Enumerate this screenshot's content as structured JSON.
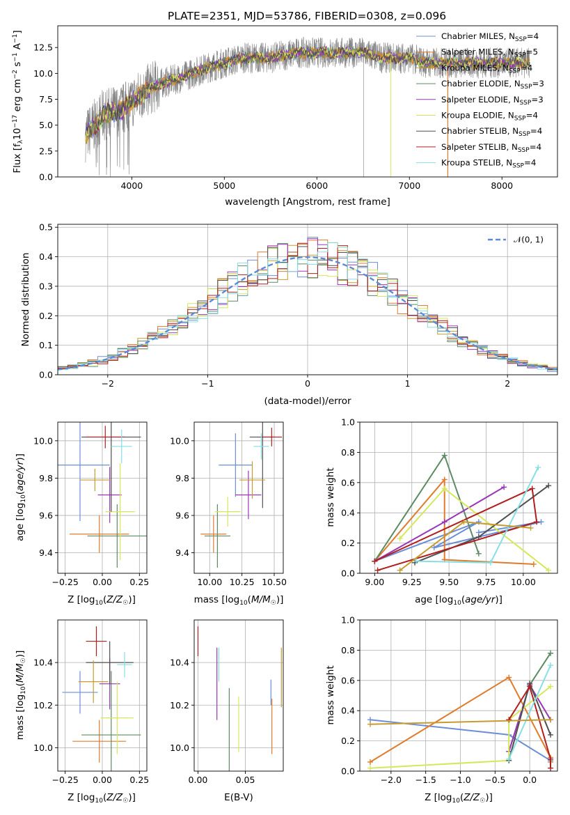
{
  "title": "PLATE=2351, MJD=53786, FIBERID=0308, z=0.096",
  "models": [
    {
      "name": "Chabrier MILES, N_SSP=4",
      "color": "#6b8fd6"
    },
    {
      "name": "Salpeter MILES, N_SSP=5",
      "color": "#e07b2b"
    },
    {
      "name": "Kroupa MILES, N_SSP=4",
      "color": "#c89b2e"
    },
    {
      "name": "Chabrier ELODIE, N_SSP=3",
      "color": "#5c8a63"
    },
    {
      "name": "Salpeter ELODIE, N_SSP=3",
      "color": "#9a35b8"
    },
    {
      "name": "Kroupa ELODIE, N_SSP=4",
      "color": "#d4e85a"
    },
    {
      "name": "Chabrier STELIB, N_SSP=4",
      "color": "#4f4f4f"
    },
    {
      "name": "Salpeter STELIB, N_SSP=4",
      "color": "#b01e1e"
    },
    {
      "name": "Kroupa STELIB, N_SSP=4",
      "color": "#86dfe3"
    }
  ],
  "panel_spectrum": {
    "xlabel": "wavelength [Angstrom, rest frame]",
    "ylabel": "Flux [f_λ 10^-17 erg cm^-2 s^-1 A^-1]",
    "xlim": [
      3200,
      8600
    ],
    "ylim": [
      0,
      14.6
    ],
    "xticks": [
      4000,
      5000,
      6000,
      7000,
      8000
    ],
    "yticks": [
      0.0,
      2.5,
      5.0,
      7.5,
      10.0,
      12.5
    ],
    "legend_labels": [
      "Chabrier MILES, N",
      "SSP",
      "=4",
      "Salpeter MILES, N",
      "SSP",
      "=5",
      "Kroupa MILES, N",
      "SSP",
      "=4",
      "Chabrier ELODIE, N",
      "SSP",
      "=3",
      "Salpeter ELODIE, N",
      "SSP",
      "=3",
      "Kroupa ELODIE, N",
      "SSP",
      "=4",
      "Chabrier STELIB, N",
      "SSP",
      "=4",
      "Salpeter STELIB, N",
      "SSP",
      "=4",
      "Kroupa STELIB, N",
      "SSP",
      "=4"
    ]
  },
  "panel_hist": {
    "xlabel": "(data-model)/error",
    "ylabel": "Normed distribution",
    "xlim": [
      -2.5,
      2.5
    ],
    "ylim": [
      0,
      0.51
    ],
    "xticks": [
      -2,
      -1,
      0,
      1,
      2
    ],
    "yticks": [
      0.0,
      0.1,
      0.2,
      0.3,
      0.4,
      0.5
    ],
    "legend": "𝒩(0, 1)"
  },
  "panel_age_Z": {
    "xlabel": "Z [log10(Z/Z☉)]",
    "ylabel": "age [log10(age/yr)]",
    "xlim": [
      -0.3,
      0.3
    ],
    "ylim": [
      9.29,
      10.1
    ],
    "xticks": [
      -0.25,
      0.0,
      0.25
    ],
    "yticks": [
      9.4,
      9.6,
      9.8,
      10.0
    ]
  },
  "panel_age_mass": {
    "xlabel": "mass [log10(M/M☉)]",
    "xlim": [
      9.88,
      10.57
    ],
    "ylim": [
      9.29,
      10.1
    ],
    "xticks": [
      10.0,
      10.25,
      10.5
    ],
    "yticks": [
      9.4,
      9.6,
      9.8,
      10.0
    ]
  },
  "panel_mw_age": {
    "xlabel": "age [log10(age/yr)]",
    "ylabel": "mass weight",
    "xlim": [
      8.9,
      10.23
    ],
    "ylim": [
      0,
      1
    ],
    "xticks": [
      9.0,
      9.25,
      9.5,
      9.75,
      10.0
    ],
    "yticks": [
      0.0,
      0.2,
      0.4,
      0.6,
      0.8,
      1.0
    ]
  },
  "panel_mass_Z": {
    "xlabel": "Z [log10(Z/Z☉)]",
    "ylabel": "mass [log10(M/M☉)]",
    "xlim": [
      -0.3,
      0.3
    ],
    "ylim": [
      9.89,
      10.6
    ],
    "xticks": [
      -0.25,
      0.0,
      0.25
    ],
    "yticks": [
      10.0,
      10.2,
      10.4
    ]
  },
  "panel_mass_ebv": {
    "xlabel": "E(B-V)",
    "xlim": [
      -0.004,
      0.09
    ],
    "ylim": [
      9.89,
      10.6
    ],
    "xticks": [
      0.0,
      0.05
    ],
    "yticks": [
      10.0,
      10.2,
      10.4
    ]
  },
  "panel_mw_Z": {
    "xlabel": "Z [log10(Z/Z☉)]",
    "ylabel": "mass weight",
    "xlim": [
      -2.45,
      0.4
    ],
    "ylim": [
      0,
      1
    ],
    "xticks": [
      -2.0,
      -1.5,
      -1.0,
      -0.5,
      0.0
    ],
    "yticks": [
      0.0,
      0.2,
      0.4,
      0.6,
      0.8,
      1.0
    ]
  },
  "chart_data": [
    {
      "type": "line",
      "title": "PLATE=2351, MJD=53786, FIBERID=0308, z=0.096",
      "xlabel": "wavelength [Angstrom, rest frame]",
      "ylabel": "Flux [f_λ 10^-17 erg cm^-2 s^-1 A^-1]",
      "xlim": [
        3200,
        8600
      ],
      "ylim": [
        0,
        14.6
      ],
      "data_envelope": {
        "x": [
          3500,
          3700,
          3900,
          4100,
          4300,
          4500,
          4800,
          5000,
          5200,
          5500,
          5800,
          6000,
          6300,
          6500,
          6700,
          7000,
          7200,
          7500,
          7800,
          8000,
          8300
        ],
        "y": [
          4.0,
          6.0,
          6.5,
          8.0,
          9.0,
          9.5,
          10.5,
          11.0,
          11.5,
          11.5,
          12.0,
          12.0,
          12.0,
          12.0,
          11.5,
          11.5,
          11.0,
          11.0,
          11.0,
          11.0,
          11.0
        ]
      },
      "legend": "top-right"
    },
    {
      "type": "line",
      "xlabel": "(data-model)/error",
      "ylabel": "Normed distribution",
      "xlim": [
        -2.5,
        2.5
      ],
      "ylim": [
        0,
        0.51
      ],
      "gaussian": {
        "mean": 0,
        "sigma": 1,
        "name": "𝒩(0, 1)"
      },
      "grid": true
    },
    {
      "type": "scatter",
      "description_axes": {
        "x": "Z [log10(Z/Z☉)]",
        "y": "age [log10(age/yr)]"
      },
      "points": [
        {
          "model": "Chabrier MILES",
          "x": -0.15,
          "xerr": 0.2,
          "y": 9.87,
          "yerr": 0.3
        },
        {
          "model": "Salpeter MILES",
          "x": -0.02,
          "xerr": 0.2,
          "y": 9.5,
          "yerr": 0.1
        },
        {
          "model": "Kroupa MILES",
          "x": 0.0,
          "xerr": 0.0,
          "y": 9.5,
          "yerr": 0.0
        },
        {
          "model": "Chabrier ELODIE",
          "x": 0.1,
          "xerr": 0.2,
          "y": 9.49,
          "yerr": 0.17
        },
        {
          "model": "Salpeter ELODIE",
          "x": 0.05,
          "xerr": 0.08,
          "y": 9.71,
          "yerr": 0.15
        },
        {
          "model": "Kroupa ELODIE",
          "x": 0.12,
          "xerr": 0.1,
          "y": 9.62,
          "yerr": 0.26
        },
        {
          "model": "Chabrier STELIB",
          "x": 0.06,
          "xerr": 0.2,
          "y": 10.02,
          "yerr": 0.4
        },
        {
          "model": "Salpeter STELIB",
          "x": 0.02,
          "xerr": 0.13,
          "y": 10.02,
          "yerr": 0.06
        },
        {
          "model": "Kroupa STELIB",
          "x": 0.13,
          "xerr": 0.07,
          "y": 9.97,
          "yerr": 0.09
        },
        {
          "model": "extra",
          "x": -0.05,
          "xerr": 0.1,
          "y": 9.79,
          "yerr": 0.06
        }
      ]
    },
    {
      "type": "scatter",
      "description_axes": {
        "x": "mass [log10(M/M☉)]",
        "y": "age [log10(age/yr)]"
      },
      "points": [
        {
          "model": "Chabrier MILES",
          "x": 10.2,
          "xerr": 0.13,
          "y": 9.87,
          "yerr": 0.17
        },
        {
          "model": "Salpeter MILES",
          "x": 10.03,
          "xerr": 0.1,
          "y": 9.5,
          "yerr": 0.1
        },
        {
          "model": "Chabrier ELODIE",
          "x": 10.06,
          "xerr": 0.1,
          "y": 9.49,
          "yerr": 0.17
        },
        {
          "model": "Salpeter ELODIE",
          "x": 10.3,
          "xerr": 0.1,
          "y": 9.71,
          "yerr": 0.13
        },
        {
          "model": "Kroupa ELODIE",
          "x": 10.14,
          "xerr": 0.1,
          "y": 9.62,
          "yerr": 0.08
        },
        {
          "model": "Chabrier STELIB",
          "x": 10.41,
          "xerr": 0.1,
          "y": 10.02,
          "yerr": 0.38
        },
        {
          "model": "Salpeter STELIB",
          "x": 10.48,
          "xerr": 0.08,
          "y": 10.02,
          "yerr": 0.05
        },
        {
          "model": "Kroupa STELIB",
          "x": 10.4,
          "xerr": 0.06,
          "y": 9.97,
          "yerr": 0.07
        },
        {
          "model": "Kroupa MILES extra",
          "x": 10.33,
          "xerr": 0.1,
          "y": 9.79,
          "yerr": 0.1
        }
      ]
    },
    {
      "type": "line",
      "xlabel": "age [log10(age/yr)]",
      "ylabel": "mass weight",
      "xlim": [
        8.9,
        10.23
      ],
      "ylim": [
        0,
        1
      ],
      "series": [
        {
          "name": "Chabrier MILES",
          "x": [
            9.0,
            9.7,
            9.4,
            10.12,
            9.7
          ],
          "y": [
            0.08,
            0.34,
            0.17,
            0.34,
            0.27
          ]
        },
        {
          "name": "Salpeter MILES",
          "x": [
            9.0,
            9.47,
            9.47,
            10.07,
            9.47
          ],
          "y": [
            0.08,
            0.62,
            0.09,
            0.06,
            0.09
          ]
        },
        {
          "name": "Chabrier ELODIE",
          "x": [
            9.0,
            9.47,
            9.7
          ],
          "y": [
            0.08,
            0.78,
            0.13
          ]
        },
        {
          "name": "Salpeter ELODIE",
          "x": [
            9.0,
            9.47,
            9.87
          ],
          "y": [
            0.08,
            0.34,
            0.57
          ]
        },
        {
          "name": "Kroupa ELODIE",
          "x": [
            9.17,
            9.47,
            10.17
          ],
          "y": [
            0.23,
            0.56,
            0.02
          ]
        },
        {
          "name": "Chabrier STELIB",
          "x": [
            9.27,
            9.7,
            10.17
          ],
          "y": [
            0.07,
            0.24,
            0.58
          ]
        },
        {
          "name": "Salpeter STELIB",
          "x": [
            9.0,
            10.06,
            10.09,
            9.02
          ],
          "y": [
            0.08,
            0.56,
            0.34,
            0.02
          ]
        },
        {
          "name": "Kroupa STELIB",
          "x": [
            9.28,
            9.78,
            10.1
          ],
          "y": [
            0.08,
            0.07,
            0.7
          ]
        },
        {
          "name": "Kroupa MILES",
          "x": [
            9.17,
            9.6,
            10.05
          ],
          "y": [
            0.02,
            0.34,
            0.3
          ]
        }
      ]
    },
    {
      "type": "scatter",
      "description_axes": {
        "x": "Z [log10(Z/Z☉)]",
        "y": "mass [log10(M/M☉)]"
      },
      "points": [
        {
          "model": "Chabrier MILES",
          "x": -0.15,
          "xerr": 0.12,
          "y": 10.26,
          "yerr": 0.1
        },
        {
          "model": "Salpeter MILES",
          "x": -0.02,
          "xerr": 0.18,
          "y": 10.03,
          "yerr": 0.1
        },
        {
          "model": "Chabrier ELODIE",
          "x": 0.06,
          "xerr": 0.2,
          "y": 10.06,
          "yerr": 0.3
        },
        {
          "model": "Salpeter ELODIE",
          "x": 0.05,
          "xerr": 0.07,
          "y": 10.3,
          "yerr": 0.12
        },
        {
          "model": "Kroupa ELODIE",
          "x": 0.1,
          "xerr": 0.11,
          "y": 10.14,
          "yerr": 0.17
        },
        {
          "model": "Chabrier STELIB",
          "x": 0.05,
          "xerr": 0.16,
          "y": 10.4,
          "yerr": 0.1
        },
        {
          "model": "Salpeter STELIB",
          "x": -0.04,
          "xerr": 0.07,
          "y": 10.5,
          "yerr": 0.07
        },
        {
          "model": "Kroupa STELIB",
          "x": 0.15,
          "xerr": 0.05,
          "y": 10.39,
          "yerr": 0.06
        },
        {
          "model": "Kroupa MILES",
          "x": -0.06,
          "xerr": 0.1,
          "y": 10.31,
          "yerr": 0.1
        }
      ]
    },
    {
      "type": "scatter",
      "description_axes": {
        "x": "E(B-V)",
        "y": "mass [log10(M/M☉)]"
      },
      "points": [
        {
          "model": "Salpeter STELIB",
          "x": 0.0,
          "y": 10.5,
          "yerr": 0.07
        },
        {
          "model": "Salpeter ELODIE",
          "x": 0.02,
          "y": 10.3,
          "yerr": 0.17
        },
        {
          "model": "Kroupa STELIB",
          "x": 0.022,
          "y": 10.39,
          "yerr": 0.08
        },
        {
          "model": "Chabrier ELODIE",
          "x": 0.033,
          "y": 10.06,
          "yerr": 0.22
        },
        {
          "model": "Kroupa ELODIE",
          "x": 0.043,
          "y": 10.11,
          "yerr": 0.13
        },
        {
          "model": "Chabrier MILES",
          "x": 0.077,
          "y": 10.26,
          "yerr": 0.06
        },
        {
          "model": "Salpeter MILES",
          "x": 0.078,
          "y": 10.1,
          "yerr": 0.13
        },
        {
          "model": "Kroupa MILES",
          "x": 0.088,
          "y": 10.33,
          "yerr": 0.14
        }
      ]
    },
    {
      "type": "line",
      "xlabel": "Z [log10(Z/Z☉)]",
      "ylabel": "mass weight",
      "xlim": [
        -2.45,
        0.4
      ],
      "ylim": [
        0,
        1
      ],
      "series": [
        {
          "name": "Chabrier MILES",
          "x": [
            -2.3,
            -0.3,
            0.3
          ],
          "y": [
            0.34,
            0.24,
            0.07
          ]
        },
        {
          "name": "Salpeter MILES",
          "x": [
            -2.3,
            -0.3,
            0.3,
            0.3
          ],
          "y": [
            0.06,
            0.62,
            0.09,
            0.06
          ]
        },
        {
          "name": "Chabrier ELODIE",
          "x": [
            -0.3,
            0.0,
            0.3
          ],
          "y": [
            0.13,
            0.57,
            0.78
          ]
        },
        {
          "name": "Salpeter ELODIE",
          "x": [
            -0.3,
            0.0,
            0.3
          ],
          "y": [
            0.13,
            0.57,
            0.34
          ]
        },
        {
          "name": "Kroupa ELODIE",
          "x": [
            -2.3,
            -0.3,
            -0.3,
            0.3
          ],
          "y": [
            0.02,
            0.07,
            0.34,
            0.56
          ]
        },
        {
          "name": "Chabrier STELIB",
          "x": [
            -0.3,
            0.0,
            0.3
          ],
          "y": [
            0.07,
            0.58,
            0.24
          ]
        },
        {
          "name": "Salpeter STELIB",
          "x": [
            -0.3,
            0.0,
            0.3,
            0.3
          ],
          "y": [
            0.34,
            0.56,
            0.08,
            0.02
          ]
        },
        {
          "name": "Kroupa STELIB",
          "x": [
            -0.3,
            0.3
          ],
          "y": [
            0.08,
            0.7
          ]
        },
        {
          "name": "Kroupa MILES",
          "x": [
            -2.3,
            0.3
          ],
          "y": [
            0.31,
            0.34
          ]
        }
      ]
    }
  ]
}
